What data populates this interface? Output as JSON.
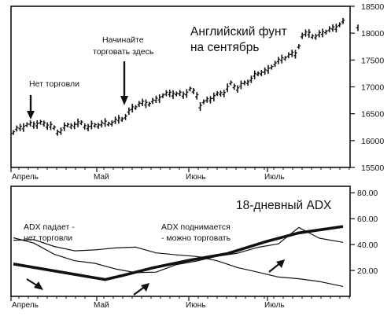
{
  "chart_data": [
    {
      "type": "bar",
      "title": "Английский фунт на сентябрь",
      "title_lines": [
        "Английский фунт",
        "на сентябрь"
      ],
      "x_ticks": [
        "Апрель",
        "Май",
        "Июнь",
        "Июль"
      ],
      "y_ticks": [
        15500,
        16000,
        16500,
        17000,
        17500,
        18000,
        18500
      ],
      "ylim": [
        15500,
        18500
      ],
      "annotations": [
        {
          "text": "Нет торговли"
        },
        {
          "text_lines": [
            "Начинайте",
            "торговать здесь"
          ]
        }
      ],
      "series": [
        {
          "anchors": [
            [
              0,
              16150
            ],
            [
              2,
              16250
            ],
            [
              5,
              16300
            ],
            [
              8,
              16320
            ],
            [
              11,
              16280
            ],
            [
              13,
              16150
            ],
            [
              15,
              16250
            ],
            [
              18,
              16300
            ],
            [
              20,
              16320
            ],
            [
              22,
              16250
            ],
            [
              25,
              16300
            ],
            [
              28,
              16320
            ],
            [
              31,
              16380
            ],
            [
              33,
              16450
            ],
            [
              35,
              16600
            ],
            [
              37,
              16680
            ],
            [
              40,
              16700
            ],
            [
              42,
              16750
            ],
            [
              44,
              16850
            ],
            [
              47,
              16880
            ],
            [
              50,
              16850
            ],
            [
              52,
              16950
            ],
            [
              54,
              16850
            ],
            [
              55,
              16650
            ],
            [
              57,
              16750
            ],
            [
              60,
              16850
            ],
            [
              62,
              16900
            ],
            [
              64,
              17050
            ],
            [
              66,
              16980
            ],
            [
              69,
              17100
            ],
            [
              71,
              17200
            ],
            [
              73,
              17280
            ],
            [
              75,
              17300
            ],
            [
              77,
              17450
            ],
            [
              79,
              17500
            ],
            [
              81,
              17600
            ],
            [
              83,
              17600
            ],
            [
              85,
              17950
            ],
            [
              87,
              18000
            ],
            [
              89,
              17920
            ],
            [
              91,
              18020
            ],
            [
              93,
              18050
            ],
            [
              95,
              18120
            ],
            [
              97,
              18200
            ]
          ]
        }
      ]
    },
    {
      "type": "line",
      "title": "18-дневный ADX",
      "x_ticks": [
        "Апрель",
        "Май",
        "Июнь",
        "Июль"
      ],
      "y_ticks": [
        "20.00",
        "40.00",
        "60.00",
        "80.00"
      ],
      "ylim": [
        0,
        85
      ],
      "annotations": [
        {
          "text_lines": [
            "ADX падает -",
            "нет торговли"
          ]
        },
        {
          "text_lines": [
            "ADX поднимается",
            "- можно торговать"
          ]
        }
      ],
      "series": [
        {
          "emphasis": "bold",
          "x": [
            0,
            27,
            32,
            41,
            52,
            63,
            74,
            84,
            97
          ],
          "y": [
            25,
            13,
            16,
            22,
            28,
            33,
            42,
            49,
            54
          ]
        },
        {
          "x": [
            0,
            6,
            12,
            18,
            24,
            30,
            36,
            42,
            48,
            54,
            60,
            66,
            72,
            78,
            84,
            90,
            97
          ],
          "y": [
            44,
            40,
            33,
            29,
            26,
            20,
            17,
            19,
            26,
            28,
            30,
            32,
            38,
            42,
            54,
            44,
            43
          ]
        },
        {
          "x": [
            0,
            6,
            12,
            18,
            24,
            30,
            36,
            42,
            48,
            54,
            60,
            66,
            72,
            78,
            84,
            90,
            97
          ],
          "y": [
            42,
            44,
            40,
            36,
            35,
            36,
            38,
            35,
            33,
            30,
            26,
            22,
            20,
            16,
            13,
            10,
            9
          ]
        }
      ]
    }
  ]
}
